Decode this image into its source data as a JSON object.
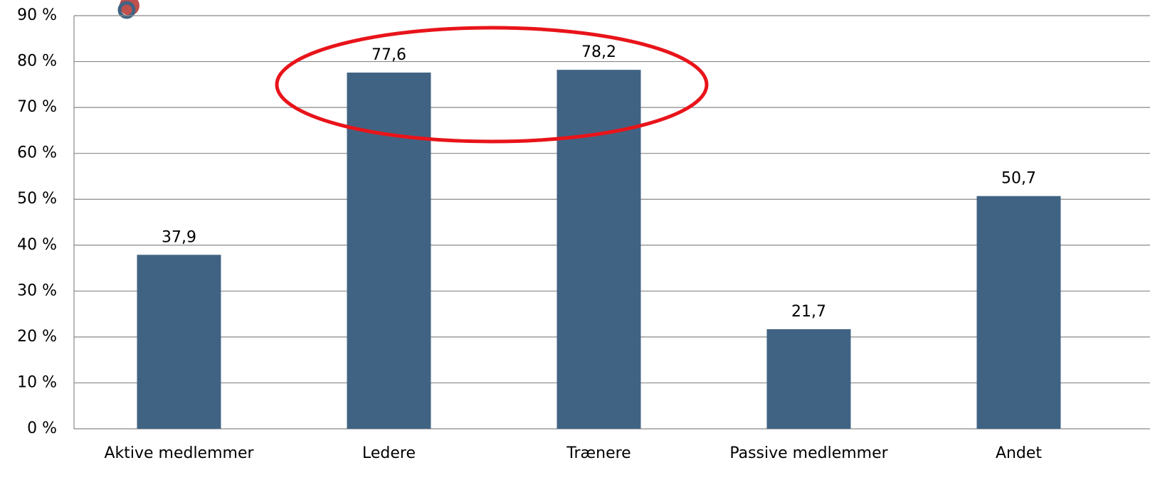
{
  "chart_data": {
    "type": "bar",
    "categories": [
      "Aktive medlemmer",
      "Ledere",
      "Trænere",
      "Passive medlemmer",
      "Andet"
    ],
    "values": [
      37.9,
      77.6,
      78.2,
      21.7,
      50.7
    ],
    "value_labels": [
      "37,9",
      "77,6",
      "78,2",
      "21,7",
      "50,7"
    ],
    "color": "#416383",
    "ylim": [
      0,
      90
    ],
    "yticks": [
      {
        "value": 0,
        "label": "0 %"
      },
      {
        "value": 10,
        "label": "10 %"
      },
      {
        "value": 20,
        "label": "20 %"
      },
      {
        "value": 30,
        "label": "30 %"
      },
      {
        "value": 40,
        "label": "40 %"
      },
      {
        "value": 50,
        "label": "50 %"
      },
      {
        "value": 60,
        "label": "60 %"
      },
      {
        "value": 70,
        "label": "70 %"
      },
      {
        "value": 80,
        "label": "80 %"
      },
      {
        "value": 90,
        "label": "90 %"
      }
    ],
    "grid": true
  }
}
